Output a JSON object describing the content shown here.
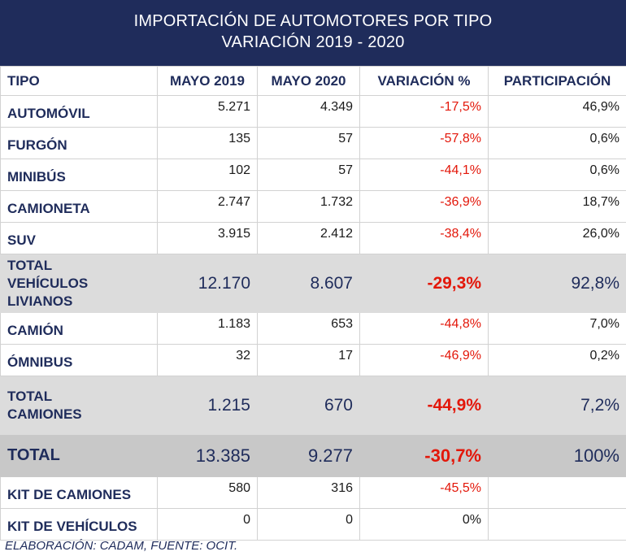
{
  "title": {
    "line1": "IMPORTACIÓN DE AUTOMOTORES POR TIPO",
    "line2": "VARIACIÓN 2019 - 2020"
  },
  "columns": [
    "TIPO",
    "MAYO 2019",
    "MAYO 2020",
    "VARIACIÓN %",
    "PARTICIPACIÓN"
  ],
  "rows": [
    {
      "tipo": "AUTOMÓVIL",
      "may2019": "5.271",
      "may2020": "4.349",
      "variacion": "-17,5%",
      "participacion": "46,9%"
    },
    {
      "tipo": "FURGÓN",
      "may2019": "135",
      "may2020": "57",
      "variacion": "-57,8%",
      "participacion": "0,6%"
    },
    {
      "tipo": "MINIBÚS",
      "may2019": "102",
      "may2020": "57",
      "variacion": "-44,1%",
      "participacion": "0,6%"
    },
    {
      "tipo": "CAMIONETA",
      "may2019": "2.747",
      "may2020": "1.732",
      "variacion": "-36,9%",
      "participacion": "18,7%"
    },
    {
      "tipo": "SUV",
      "may2019": "3.915",
      "may2020": "2.412",
      "variacion": "-38,4%",
      "participacion": "26,0%"
    },
    {
      "tipo": "TOTAL VEHÍCULOS LIVIANOS",
      "tipo_l1": "TOTAL",
      "tipo_l2": "VEHÍCULOS LIVIANOS",
      "may2019": "12.170",
      "may2020": "8.607",
      "variacion": "-29,3%",
      "participacion": "92,8%"
    },
    {
      "tipo": "CAMIÓN",
      "may2019": "1.183",
      "may2020": "653",
      "variacion": "-44,8%",
      "participacion": "7,0%"
    },
    {
      "tipo": "ÓMNIBUS",
      "may2019": "32",
      "may2020": "17",
      "variacion": "-46,9%",
      "participacion": "0,2%"
    },
    {
      "tipo": "TOTAL CAMIONES",
      "tipo_l1": "TOTAL",
      "tipo_l2": "CAMIONES",
      "may2019": "1.215",
      "may2020": "670",
      "variacion": "-44,9%",
      "participacion": "7,2%"
    },
    {
      "tipo": "TOTAL",
      "may2019": "13.385",
      "may2020": "9.277",
      "variacion": "-30,7%",
      "participacion": "100%"
    },
    {
      "tipo": "KIT DE CAMIONES",
      "may2019": "580",
      "may2020": "316",
      "variacion": "-45,5%",
      "participacion": ""
    },
    {
      "tipo": "KIT DE VEHÍCULOS",
      "may2019": "0",
      "may2020": "0",
      "variacion": "0%",
      "participacion": ""
    }
  ],
  "footer": "ELABORACIÓN: CADAM, FUENTE: OCIT.",
  "colors": {
    "header_bg": "#1f2c5b",
    "label_text": "#1f2c5b",
    "negative_text": "#e3170a",
    "subtotal_bg": "#dcdcdc",
    "total_bg": "#c8c8c8"
  }
}
